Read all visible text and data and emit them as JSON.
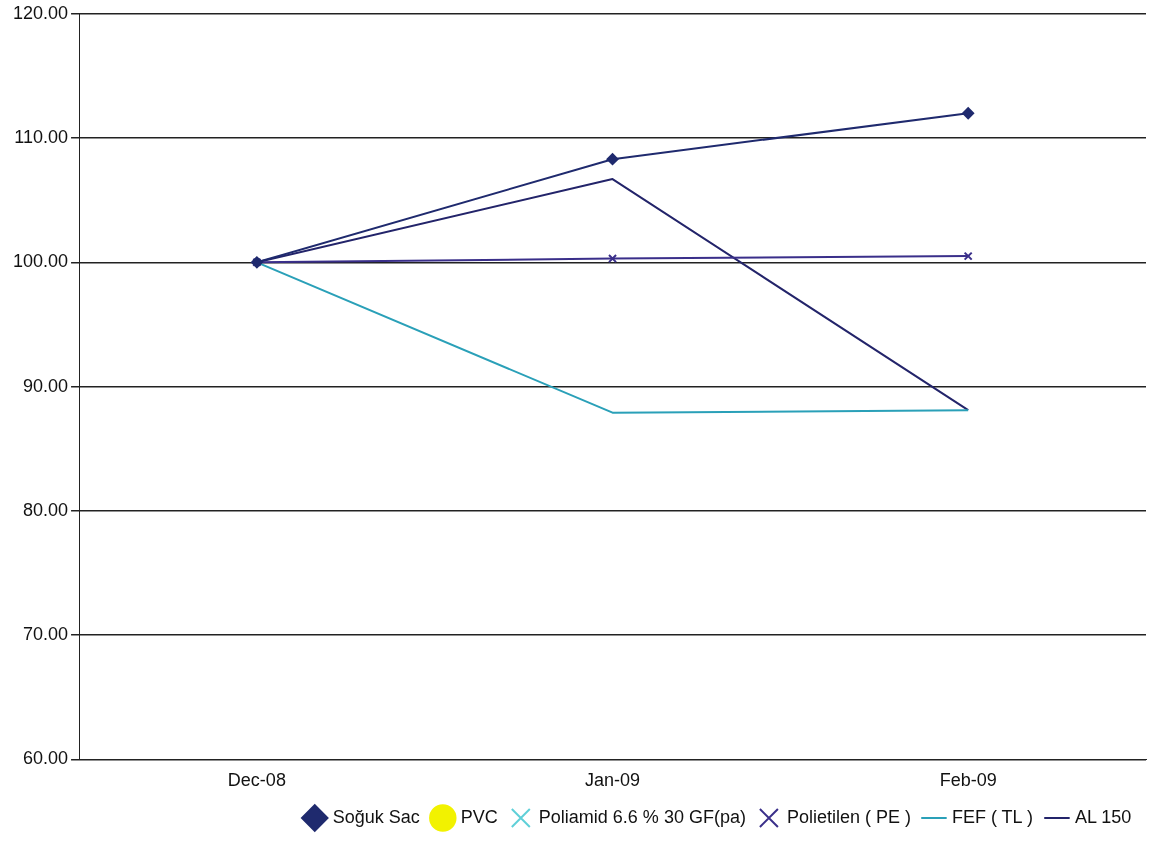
{
  "chart_data": {
    "type": "line",
    "categories": [
      "Dec-08",
      "Jan-09",
      "Feb-09"
    ],
    "series": [
      {
        "name": "Soğuk Sac",
        "color": "#1f2a6e",
        "marker": "diamond",
        "values": [
          100,
          108.3,
          112.0
        ]
      },
      {
        "name": "PVC",
        "color": "#f2f200",
        "marker": "circle",
        "values": [
          null,
          null,
          null
        ]
      },
      {
        "name": "Poliamid 6.6 % 30 GF(pa)",
        "color": "#5fd0d8",
        "marker": "cross",
        "values": [
          null,
          null,
          null
        ]
      },
      {
        "name": "Polietilen ( PE )",
        "color": "#3a2f8a",
        "marker": "cross",
        "values": [
          100,
          100.3,
          100.5
        ]
      },
      {
        "name": "FEF ( TL )",
        "color": "#2aa0b8",
        "marker": "none",
        "values": [
          100,
          87.9,
          88.1
        ]
      },
      {
        "name": "AL 150",
        "color": "#23246a",
        "marker": "none",
        "values": [
          100,
          106.7,
          88.1
        ]
      }
    ],
    "ylim": [
      60,
      120
    ],
    "yticks": [
      {
        "value": 60,
        "label": "60.00"
      },
      {
        "value": 70,
        "label": "70.00"
      },
      {
        "value": 80,
        "label": "80.00"
      },
      {
        "value": 90,
        "label": "90.00"
      },
      {
        "value": 100,
        "label": "100.00"
      },
      {
        "value": 110,
        "label": "110.00"
      },
      {
        "value": 120,
        "label": "120.00"
      }
    ],
    "grid": "y",
    "legend": "bottom right"
  }
}
